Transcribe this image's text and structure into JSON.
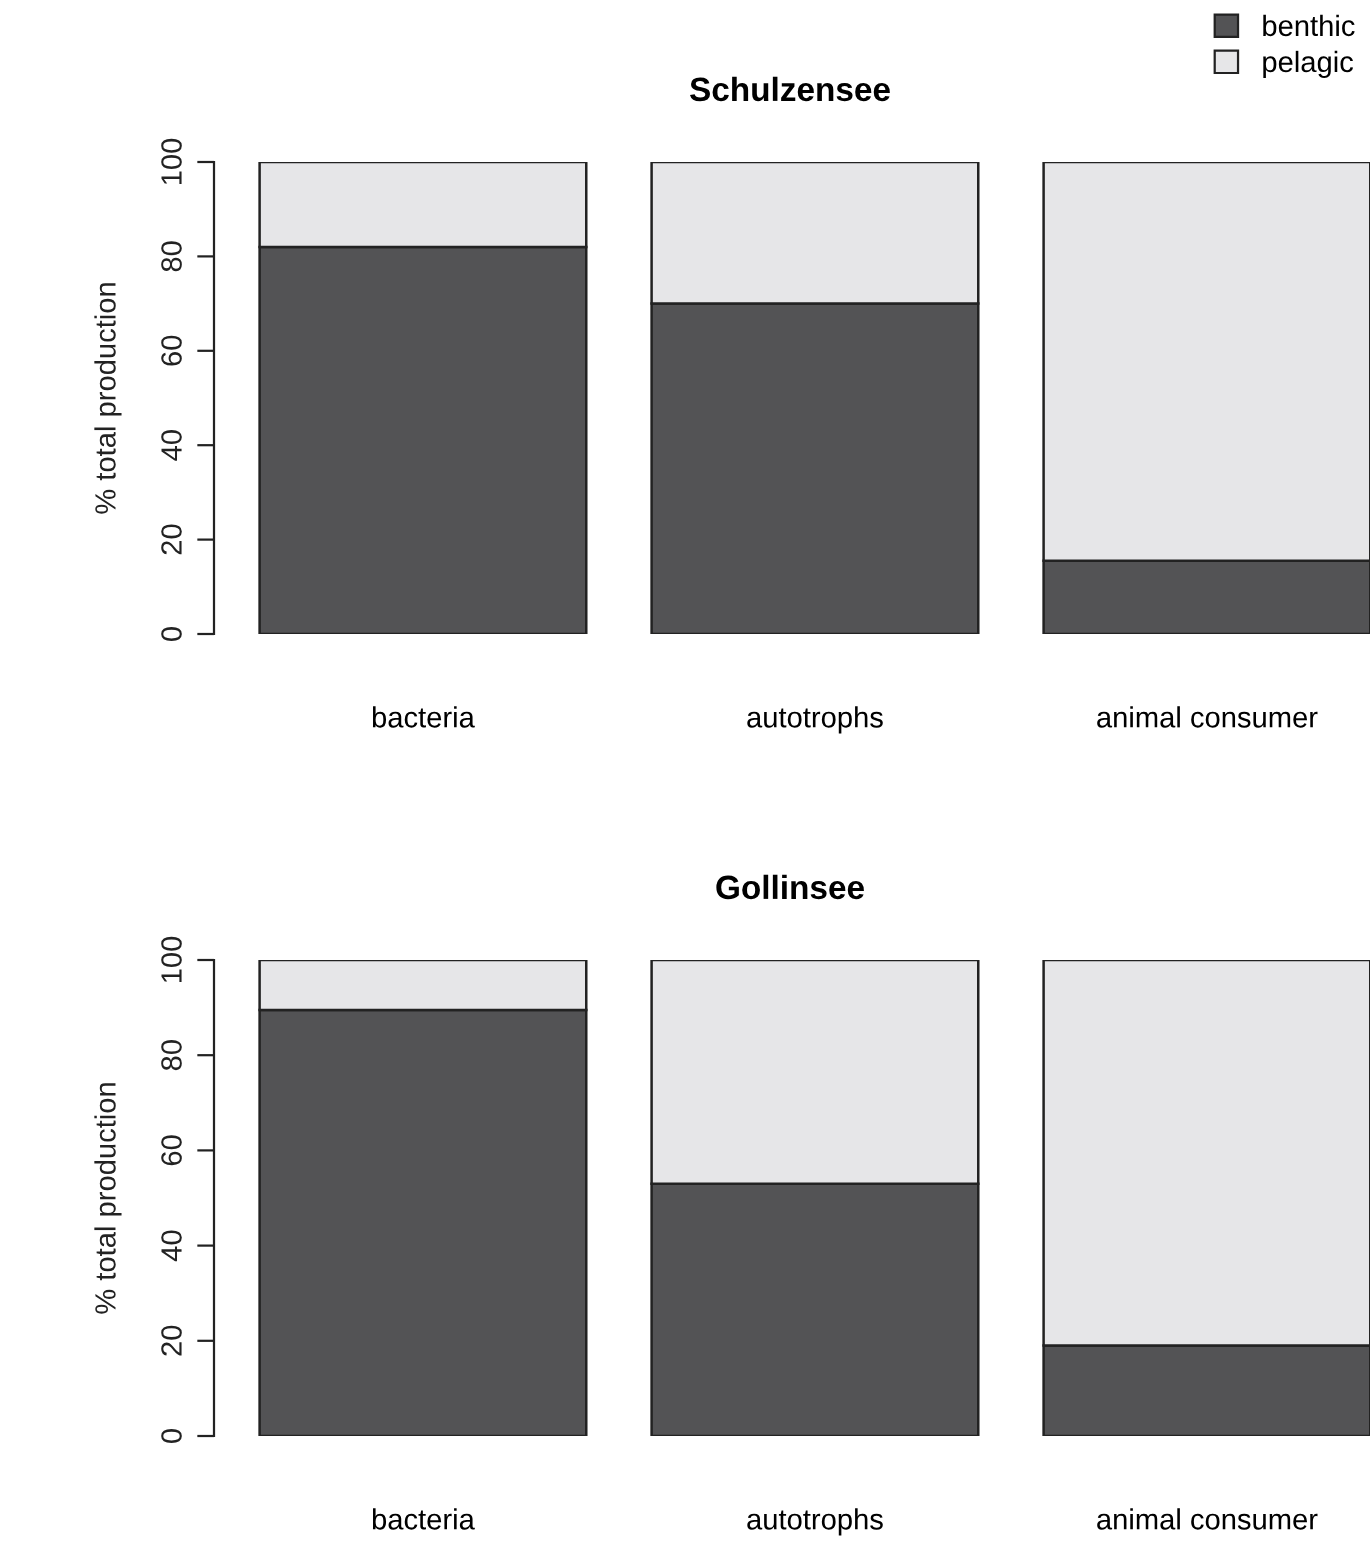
{
  "chart_data": [
    {
      "type": "bar",
      "title": "Schulzensee",
      "ylabel": "% total production",
      "categories": [
        "bacteria",
        "autotrophs",
        "animal consumer"
      ],
      "stacked": true,
      "legend": "top right",
      "ylim": [
        0,
        100
      ],
      "yticks": [
        0,
        20,
        40,
        60,
        80,
        100
      ],
      "series": [
        {
          "name": "benthic",
          "color": "#535355",
          "values": [
            82,
            70,
            15.5
          ]
        },
        {
          "name": "pelagic",
          "color": "#e6e6e8",
          "values": [
            18,
            30,
            84.5
          ]
        }
      ]
    },
    {
      "type": "bar",
      "title": "Gollinsee",
      "ylabel": "% total production",
      "categories": [
        "bacteria",
        "autotrophs",
        "animal consumer"
      ],
      "stacked": true,
      "ylim": [
        0,
        100
      ],
      "yticks": [
        0,
        20,
        40,
        60,
        80,
        100
      ],
      "series": [
        {
          "color": "#535355",
          "values": [
            89.5,
            53,
            19
          ]
        },
        {
          "color": "#e6e6e8",
          "values": [
            10.5,
            47,
            81
          ]
        }
      ]
    }
  ]
}
